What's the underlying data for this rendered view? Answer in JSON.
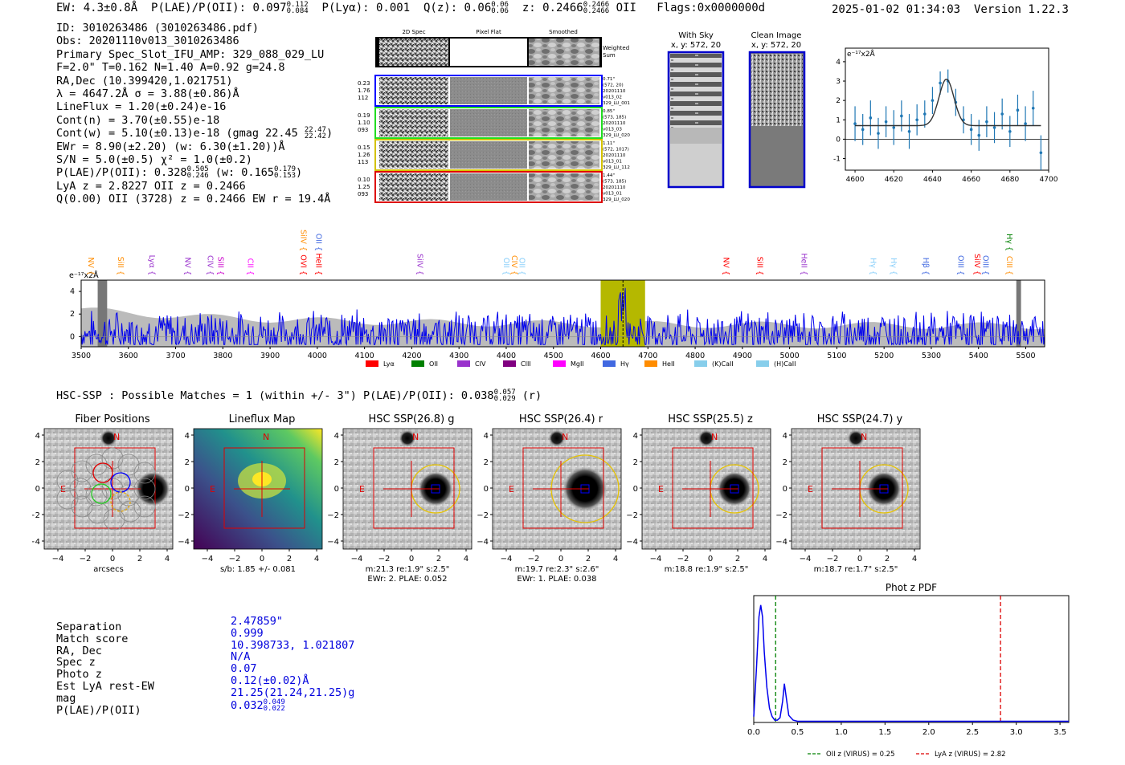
{
  "header": {
    "ew": "EW: 4.3±0.8Å",
    "plae": "P(LAE)/P(OII): 0.097",
    "plae_hi": "0.112",
    "plae_lo": "0.084",
    "plya": "P(Lyα): 0.001",
    "qz": "Q(z): 0.06",
    "qz_hi": "0.06",
    "qz_lo": "0.06",
    "z": "z: 0.2466",
    "z_hi": "0.2466",
    "z_lo": "0.2466",
    "z_line": "OII",
    "flags": "Flags:0x0000000d",
    "datetime": "2025-01-02 01:34:03",
    "version": "Version 1.22.3"
  },
  "info": {
    "id": "ID: 3010263486 (3010263486.pdf)",
    "obs": "Obs: 20201110v013_3010263486",
    "primary": "Primary Spec_Slot_IFU_AMP: 329_088_029_LU",
    "fiber": "F=2.0\"  T=0.162  N=1.40  A=0.92  g=24.8",
    "radec": "RA,Dec (10.399420,1.021751)",
    "lambda": "λ = 4647.2Å   σ = 3.88(±0.86)Å",
    "lineflux": "LineFlux = 1.20(±0.24)e-16",
    "cont_n": "Cont(n) = 3.70(±0.55)e-18",
    "cont_w": "Cont(w) = 5.10(±0.13)e-18 (gmag 22.45",
    "gmag_hi": "22.47",
    "gmag_lo": "22.42",
    "ewr": "EWr = 8.90(±2.20) (w: 6.30(±1.20))Å",
    "sn": "S/N = 5.0(±0.5)   χ² = 1.0(±0.2)",
    "plae_a": "P(LAE)/P(OII): 0.328",
    "plae_a_hi": "0.505",
    "plae_a_lo": "0.246",
    "plae_b": "(w: 0.165",
    "plae_b_hi": "0.179",
    "plae_b_lo": "0.153",
    "lya_z": "LyA z = 2.8227   OII z = 0.2466",
    "q": "Q(0.00) OII (3728) z = 0.2466   EW r = 19.4Å"
  },
  "cutouts": {
    "headers": [
      "2D Spec",
      "Pixel Flat",
      "Smoothed"
    ],
    "weighted": [
      "Weighted",
      "Sum"
    ],
    "rows": [
      {
        "color": "#0000ff",
        "left": [
          "0.23",
          "1.76",
          "112"
        ],
        "right": [
          "0.71\"",
          "(572, 20)",
          "20201110",
          "v013_02",
          "329_LU_001"
        ]
      },
      {
        "color": "#22dd22",
        "left": [
          "0.19",
          "1.10",
          "093"
        ],
        "right": [
          "0.85\"",
          "(573, 185)",
          "20201110",
          "v013_03",
          "329_LU_020"
        ]
      },
      {
        "color": "#d4c200",
        "left": [
          "0.15",
          "1.26",
          "113"
        ],
        "right": [
          "1.11\"",
          "(572, 1017)",
          "20201110",
          "v013_01",
          "329_LU_112"
        ]
      },
      {
        "color": "#dd0000",
        "left": [
          "0.10",
          "1.25",
          "093"
        ],
        "right": [
          "1.44\"",
          "(573, 185)",
          "20201110",
          "v013_01",
          "329_LU_020"
        ]
      }
    ]
  },
  "sky": {
    "with_sky": "With Sky",
    "with_sky_xy": "x, y: 572, 20",
    "clean": "Clean Image",
    "clean_xy": "x, y: 572, 20"
  },
  "colors": {
    "ink": "#000000",
    "series": "#0000ee",
    "fit": "#1f77b4",
    "highlight": "#b5b800",
    "shade": "#bbbbbb"
  },
  "chart_data": [
    {
      "type": "line",
      "name": "line-zoom",
      "ylabel": "e⁻¹⁷x2Å",
      "xlim": [
        4595,
        4700
      ],
      "ylim": [
        -1.6,
        4.7
      ],
      "xticks": [
        4600,
        4620,
        4640,
        4660,
        4680,
        4700
      ],
      "yticks": [
        -1,
        0,
        1,
        2,
        3,
        4
      ],
      "x": [
        4600,
        4604,
        4608,
        4612,
        4616,
        4620,
        4624,
        4628,
        4632,
        4636,
        4640,
        4644,
        4648,
        4652,
        4656,
        4660,
        4664,
        4668,
        4672,
        4676,
        4680,
        4684,
        4688,
        4692,
        4696
      ],
      "y": [
        0.8,
        0.5,
        1.1,
        0.3,
        0.9,
        0.6,
        1.2,
        0.4,
        1.0,
        1.3,
        2.0,
        2.9,
        3.0,
        1.9,
        1.0,
        0.5,
        0.2,
        0.9,
        0.6,
        1.3,
        0.4,
        1.5,
        0.8,
        1.6,
        -0.7
      ],
      "err": [
        0.9,
        0.8,
        0.9,
        0.8,
        0.8,
        0.9,
        0.8,
        0.9,
        0.8,
        0.7,
        0.7,
        0.6,
        0.6,
        0.7,
        0.7,
        0.8,
        0.8,
        0.8,
        0.8,
        0.8,
        0.8,
        0.8,
        0.9,
        0.9,
        0.9
      ],
      "fit": {
        "continuum": 0.7,
        "center": 4647.2,
        "sigma": 3.88,
        "amplitude": 2.4
      }
    },
    {
      "type": "line",
      "name": "full-spectrum",
      "ylabel": "e⁻¹⁷x2Å",
      "xlim": [
        3500,
        5540
      ],
      "ylim": [
        -0.9,
        5.0
      ],
      "xticks": [
        3500,
        3600,
        3700,
        3800,
        3900,
        4000,
        4100,
        4200,
        4300,
        4400,
        4500,
        4600,
        4700,
        4800,
        4900,
        5000,
        5100,
        5200,
        5300,
        5400,
        5500
      ],
      "yticks": [
        0,
        2,
        4
      ],
      "highlight": [
        4600,
        4694
      ],
      "marker": 4647.2,
      "masked": [
        [
          3535,
          3555
        ],
        [
          5480,
          5490
        ]
      ],
      "line_labels": [
        {
          "label": "NV",
          "wave": 3515,
          "color": "#ff8c00"
        },
        {
          "label": "SiII",
          "wave": 3578,
          "color": "#ff8c00"
        },
        {
          "label": "Lyα",
          "wave": 3645,
          "color": "#9932cc"
        },
        {
          "label": "NV",
          "wave": 3720,
          "color": "#9932cc"
        },
        {
          "label": "CIV",
          "wave": 3768,
          "color": "#9932cc"
        },
        {
          "label": "SiII",
          "wave": 3790,
          "color": "#cc00cc"
        },
        {
          "label": "CII",
          "wave": 3853,
          "color": "#ff00ff"
        },
        {
          "label": "OVI",
          "wave": 3965,
          "color": "#ff0000"
        },
        {
          "label": "SiIV",
          "wave": 3965,
          "color": "#ff8c00"
        },
        {
          "label": "HeII",
          "wave": 3998,
          "color": "#ff0000"
        },
        {
          "label": "OII",
          "wave": 3998,
          "color": "#4169e1"
        },
        {
          "label": "SiIV",
          "wave": 4212,
          "color": "#9932cc"
        },
        {
          "label": "OII",
          "wave": 4395,
          "color": "#87cefa"
        },
        {
          "label": "CIV",
          "wave": 4412,
          "color": "#ff8c00"
        },
        {
          "label": "OII",
          "wave": 4428,
          "color": "#87cefa"
        },
        {
          "label": "NV",
          "wave": 4860,
          "color": "#ff0000"
        },
        {
          "label": "SiII",
          "wave": 4932,
          "color": "#ff0000"
        },
        {
          "label": "HeII",
          "wave": 5025,
          "color": "#9932cc"
        },
        {
          "label": "Hγ",
          "wave": 5172,
          "color": "#87cefa"
        },
        {
          "label": "Hγ",
          "wave": 5215,
          "color": "#87cefa"
        },
        {
          "label": "Hβ",
          "wave": 5283,
          "color": "#4169e1"
        },
        {
          "label": "OIII",
          "wave": 5357,
          "color": "#4169e1"
        },
        {
          "label": "SiIV",
          "wave": 5392,
          "color": "#ff0000"
        },
        {
          "label": "OIII",
          "wave": 5410,
          "color": "#4169e1"
        },
        {
          "label": "CIII",
          "wave": 5460,
          "color": "#ff8c00"
        },
        {
          "label": "Hγ",
          "wave": 5460,
          "color": "#008000"
        }
      ],
      "legend": [
        {
          "label": "Lyα",
          "color": "#ff0000"
        },
        {
          "label": "OII",
          "color": "#008000"
        },
        {
          "label": "CIV",
          "color": "#9932cc"
        },
        {
          "label": "CIII",
          "color": "#800080"
        },
        {
          "label": "MgII",
          "color": "#ff00ff"
        },
        {
          "label": "Hγ",
          "color": "#4169e1"
        },
        {
          "label": "HeII",
          "color": "#ff8c00"
        },
        {
          "label": "(K)CaII",
          "color": "#87ceeb"
        },
        {
          "label": "(H)CaII",
          "color": "#87ceeb"
        }
      ]
    },
    {
      "type": "line",
      "name": "photz-pdf",
      "title": "Phot z PDF",
      "xlim": [
        0,
        3.6
      ],
      "xticks": [
        0.0,
        0.5,
        1.0,
        1.5,
        2.0,
        2.5,
        3.0,
        3.5
      ],
      "x": [
        0,
        0.03,
        0.06,
        0.08,
        0.1,
        0.12,
        0.15,
        0.18,
        0.21,
        0.24,
        0.27,
        0.3,
        0.33,
        0.35,
        0.37,
        0.4,
        0.45,
        0.5,
        0.6,
        1.0,
        2.0,
        3.0,
        3.6
      ],
      "y": [
        0.05,
        0.45,
        0.9,
        1.0,
        0.9,
        0.6,
        0.3,
        0.12,
        0.05,
        0.02,
        0.02,
        0.04,
        0.18,
        0.33,
        0.22,
        0.06,
        0.02,
        0.01,
        0.01,
        0.01,
        0.01,
        0.01,
        0.01
      ],
      "vlines": [
        {
          "label": "OII z (VIRUS) = 0.25",
          "x": 0.25,
          "color": "#008000"
        },
        {
          "label": "LyA z (VIRUS) = 2.82",
          "x": 2.82,
          "color": "#dd0000"
        }
      ]
    }
  ],
  "hsc": {
    "summary": "HSC-SSP : Possible Matches = 1 (within +/- 3\")  P(LAE)/P(OII): 0.038",
    "summary_hi": "0.057",
    "summary_lo": "0.029",
    "summary_band": "(r)",
    "panels": [
      {
        "title": "Fiber Positions",
        "note1": "arcsecs",
        "note2": ""
      },
      {
        "title": "Lineflux Map",
        "note1": "s/b: 1.85 +/- 0.081",
        "note2": ""
      },
      {
        "title": "HSC SSP(26.8) g",
        "note1": "m:21.3  re:1.9\"  s:2.5\"",
        "note2": "EWr: 2. PLAE: 0.052"
      },
      {
        "title": "HSC SSP(26.4) r",
        "note1": "m:19.7  re:2.3\"  s:2.6\"",
        "note2": "EWr: 1. PLAE: 0.038"
      },
      {
        "title": "HSC SSP(25.5) z",
        "note1": "m:18.8  re:1.9\"  s:2.5\"",
        "note2": ""
      },
      {
        "title": "HSC SSP(24.7) y",
        "note1": "m:18.7  re:1.7\"  s:2.5\"",
        "note2": ""
      }
    ],
    "ticks": [
      "4",
      "2",
      "0",
      "−2",
      "−4"
    ],
    "xticks": [
      "−4",
      "−2",
      "0",
      "2",
      "4"
    ],
    "north": "N",
    "east": "E"
  },
  "match": {
    "labels": [
      "Separation",
      "Match score",
      "RA, Dec",
      "Spec z",
      "Photo z",
      "Est LyA rest-EW",
      "mag",
      "P(LAE)/P(OII)"
    ],
    "values": [
      "2.47859\"",
      "0.999",
      "10.398733, 1.021807",
      "N/A",
      "0.07",
      "0.12(±0.02)Å",
      "21.25(21.24,21.25)g",
      "0.032"
    ],
    "plae_hi": "0.049",
    "plae_lo": "0.022"
  }
}
